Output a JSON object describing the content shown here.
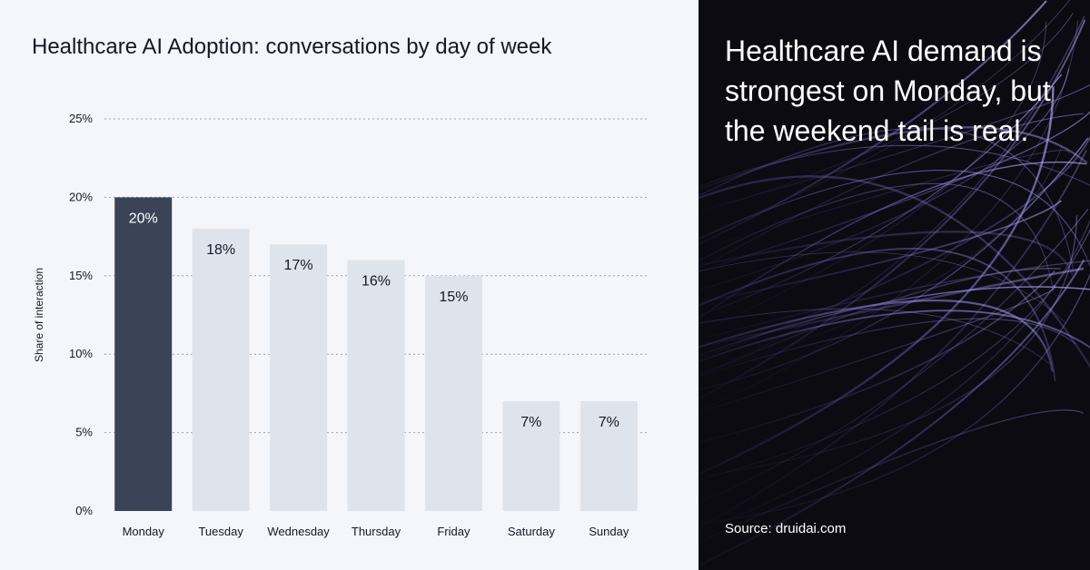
{
  "chart_data": {
    "type": "bar",
    "title": "Healthcare AI Adoption: conversations by day of week",
    "ylabel": "Share of interaction",
    "xlabel": "",
    "categories": [
      "Monday",
      "Tuesday",
      "Wednesday",
      "Thursday",
      "Friday",
      "Saturday",
      "Sunday"
    ],
    "values": [
      20,
      18,
      17,
      16,
      15,
      7,
      7
    ],
    "data_labels": [
      "20%",
      "18%",
      "17%",
      "16%",
      "15%",
      "7%",
      "7%"
    ],
    "ylim": [
      0,
      25
    ],
    "yticks": [
      0,
      5,
      10,
      15,
      20,
      25
    ],
    "ytick_labels": [
      "0%",
      "5%",
      "10%",
      "15%",
      "20%",
      "25%"
    ],
    "grid": true,
    "highlight_index": 0,
    "colors": {
      "highlight": "#3a4456",
      "default": "#dfe4ec",
      "highlight_label": "#ffffff",
      "default_label": "#141826",
      "grid": "#9aa1ad"
    }
  },
  "panel": {
    "headline": "Healthcare AI demand is strongest on Monday, but the weekend tail is real.",
    "source": "Source: druidai.com"
  }
}
